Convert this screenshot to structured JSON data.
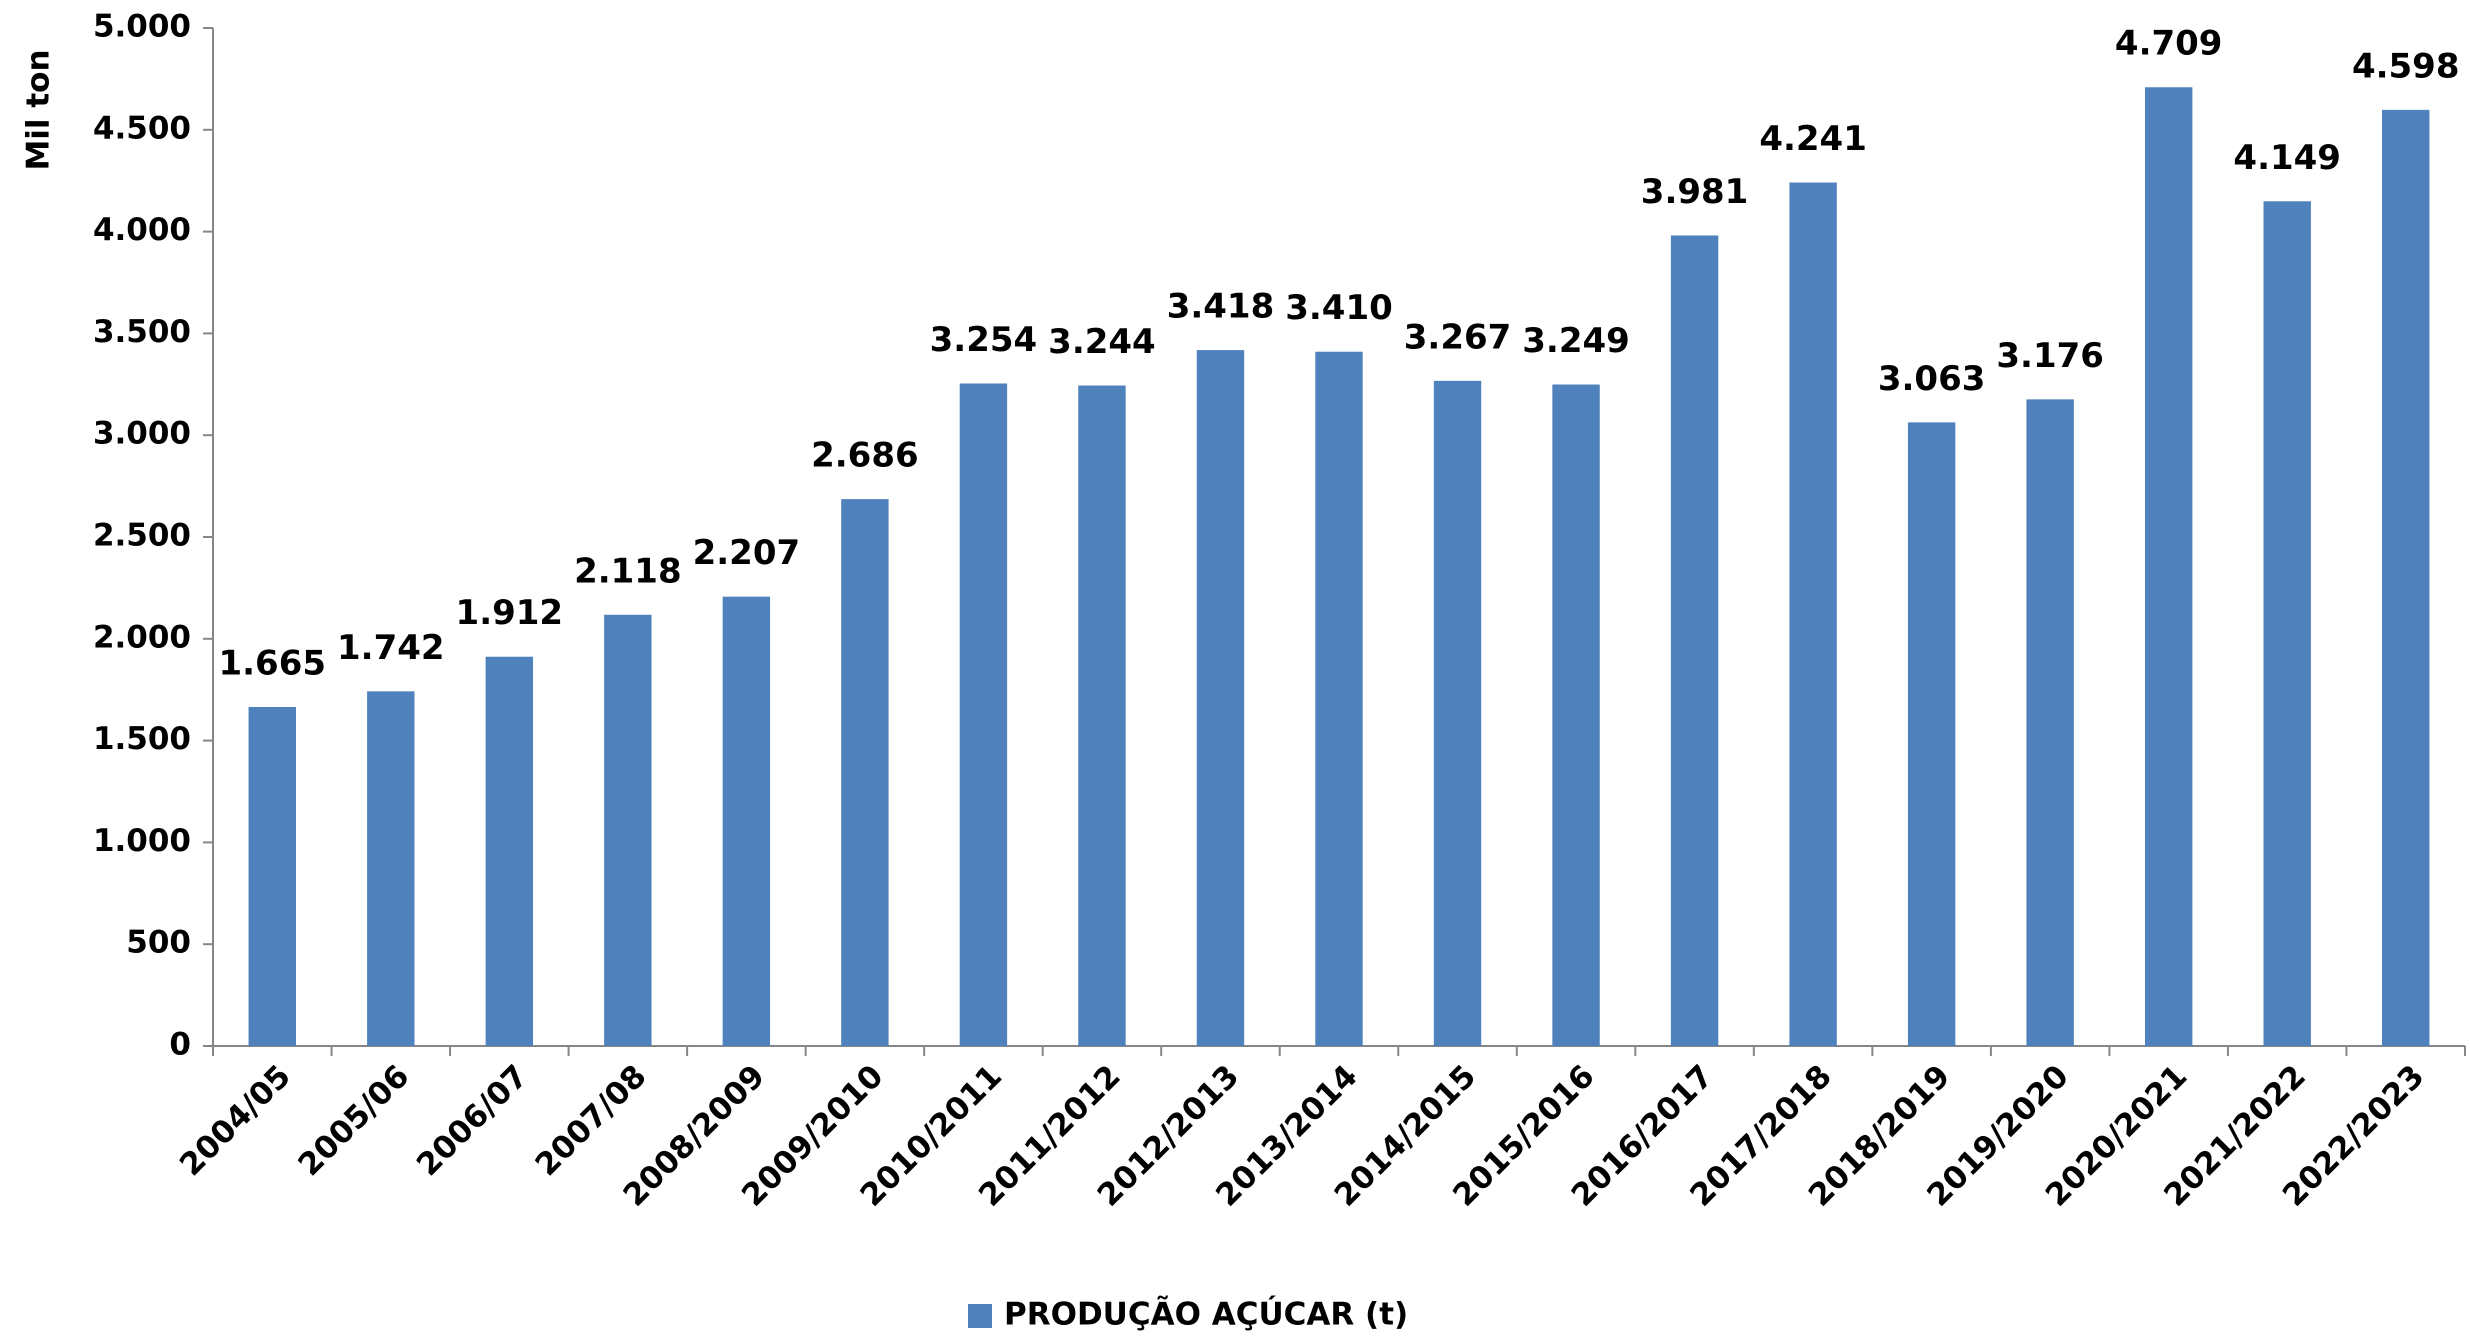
{
  "chart_data": {
    "type": "bar",
    "y_label": "Mil ton",
    "categories": [
      "2004/05",
      "2005/06",
      "2006/07",
      "2007/08",
      "2008/2009",
      "2009/2010",
      "2010/2011",
      "2011/2012",
      "2012/2013",
      "2013/2014",
      "2014/2015",
      "2015/2016",
      "2016/2017",
      "2017/2018",
      "2018/2019",
      "2019/2020",
      "2020/2021",
      "2021/2022",
      "2022/2023"
    ],
    "series": [
      {
        "name": "PRODUÇÃO AÇÚCAR (t)",
        "color": "#4f81bd",
        "values": [
          1665,
          1742,
          1912,
          2118,
          2207,
          2686,
          3254,
          3244,
          3418,
          3410,
          3267,
          3249,
          3981,
          4241,
          3063,
          3176,
          4709,
          4149,
          4598
        ],
        "value_labels": [
          "1.665",
          "1.742",
          "1.912",
          "2.118",
          "2.207",
          "2.686",
          "3.254",
          "3.244",
          "3.418",
          "3.410",
          "3.267",
          "3.249",
          "3.981",
          "4.241",
          "3.063",
          "3.176",
          "4.709",
          "4.149",
          "4.598"
        ]
      }
    ],
    "ylim": [
      0,
      5000
    ],
    "yticks": [
      0,
      500,
      {
        "value": 1000,
        "label": "1.000"
      },
      {
        "value": 1500,
        "label": "1.500"
      },
      {
        "value": 2000,
        "label": "2.000"
      },
      {
        "value": 2500,
        "label": "2.500"
      },
      {
        "value": 3000,
        "label": "3.000"
      },
      {
        "value": 3500,
        "label": "3.500"
      },
      {
        "value": 4000,
        "label": "4.000"
      },
      {
        "value": 4500,
        "label": "4.500"
      },
      {
        "value": 5000,
        "label": "5.000"
      }
    ],
    "legend": "bottom",
    "grid": false
  }
}
